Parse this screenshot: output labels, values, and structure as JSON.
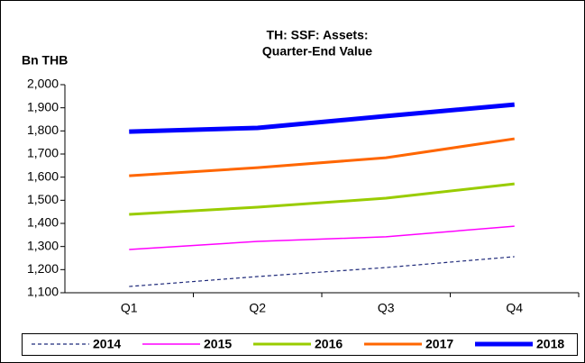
{
  "chart_data": {
    "type": "line",
    "title": [
      "TH: SSF: Assets:",
      "Quarter-End Value"
    ],
    "ylabel": "Bn THB",
    "categories": [
      "Q1",
      "Q2",
      "Q3",
      "Q4"
    ],
    "series": [
      {
        "name": "2014",
        "color": "#1f2a7a",
        "width": 1.2,
        "dash": true,
        "values": [
          1127,
          1170,
          1209,
          1256
        ]
      },
      {
        "name": "2015",
        "color": "#ff00ff",
        "width": 1.5,
        "dash": false,
        "values": [
          1287,
          1322,
          1342,
          1388
        ]
      },
      {
        "name": "2016",
        "color": "#99cc00",
        "width": 3,
        "dash": false,
        "values": [
          1439,
          1470,
          1509,
          1571
        ]
      },
      {
        "name": "2017",
        "color": "#ff6600",
        "width": 3,
        "dash": false,
        "values": [
          1606,
          1641,
          1684,
          1766
        ]
      },
      {
        "name": "2018",
        "color": "#0000ff",
        "width": 5,
        "dash": false,
        "values": [
          1797,
          1813,
          1864,
          1914
        ]
      }
    ],
    "ylim": [
      1100,
      2000
    ],
    "yticks": [
      {
        "value": 1100,
        "label": "1,100"
      },
      {
        "value": 1200,
        "label": "1,200"
      },
      {
        "value": 1300,
        "label": "1,300"
      },
      {
        "value": 1400,
        "label": "1,400"
      },
      {
        "value": 1500,
        "label": "1,500"
      },
      {
        "value": 1600,
        "label": "1,600"
      },
      {
        "value": 1700,
        "label": "1,700"
      },
      {
        "value": 1800,
        "label": "1,800"
      },
      {
        "value": 1900,
        "label": "1,900"
      },
      {
        "value": 2000,
        "label": "2,000"
      }
    ],
    "legend": "bottom"
  }
}
